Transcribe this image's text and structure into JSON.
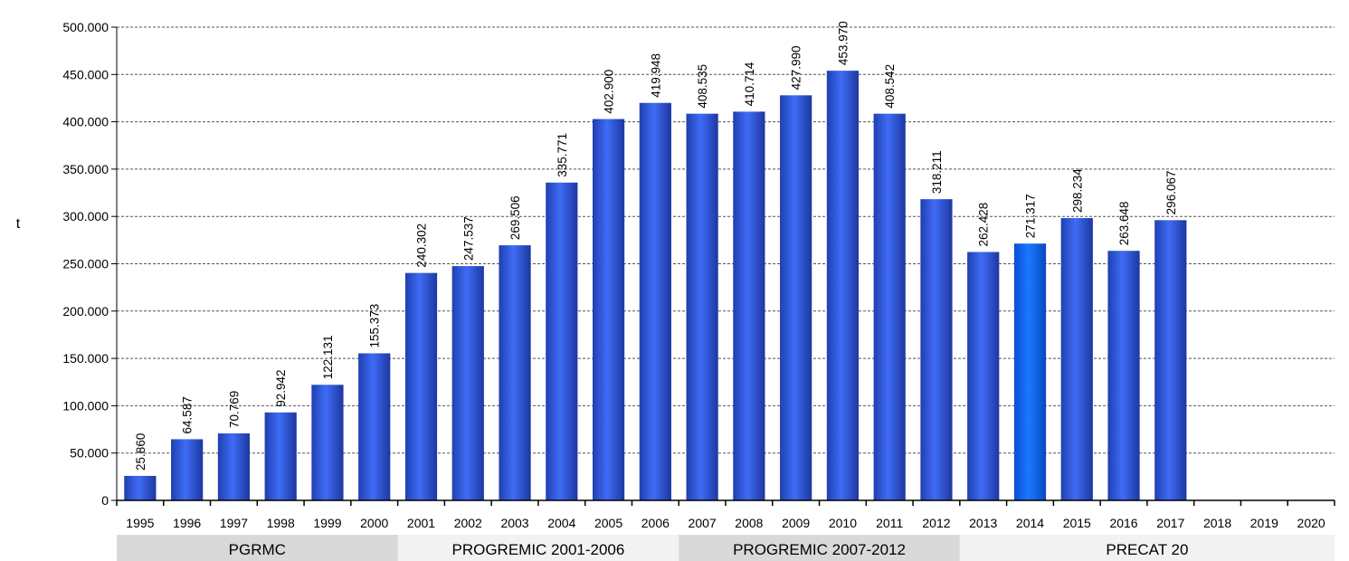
{
  "chart_data": {
    "type": "bar",
    "title": "",
    "ylabel": "t",
    "xlabel": "",
    "ylim": [
      0,
      500000
    ],
    "ytick_step": 50000,
    "yticks": [
      "0",
      "50.000",
      "100.000",
      "150.000",
      "200.000",
      "250.000",
      "300.000",
      "350.000",
      "400.000",
      "450.000",
      "500.000"
    ],
    "grid": true,
    "categories": [
      "1995",
      "1996",
      "1997",
      "1998",
      "1999",
      "2000",
      "2001",
      "2002",
      "2003",
      "2004",
      "2005",
      "2006",
      "2007",
      "2008",
      "2009",
      "2010",
      "2011",
      "2012",
      "2013",
      "2014",
      "2015",
      "2016",
      "2017",
      "2018",
      "2019",
      "2020"
    ],
    "values": [
      25860,
      64587,
      70769,
      92942,
      122131,
      155373,
      240302,
      247537,
      269506,
      335771,
      402900,
      419948,
      408535,
      410714,
      427990,
      453970,
      408542,
      318211,
      262428,
      271317,
      298234,
      263648,
      296067,
      null,
      null,
      null
    ],
    "data_labels": [
      "25.860",
      "64.587",
      "70.769",
      "92.942",
      "122.131",
      "155.373",
      "240.302",
      "247.537",
      "269.506",
      "335.771",
      "402.900",
      "419.948",
      "408.535",
      "410.714",
      "427.990",
      "453.970",
      "408.542",
      "318.211",
      "262.428",
      "271.317",
      "298.234",
      "263.648",
      "296.067",
      "",
      "",
      ""
    ],
    "bar_color": "#2f5be0",
    "highlight_color": "#0a64ff",
    "highlight_index": 19,
    "periods": [
      {
        "label": "PGRMC",
        "start": 0,
        "end": 5,
        "color": "#d9d9d9"
      },
      {
        "label": "PROGREMIC 2001-2006",
        "start": 6,
        "end": 11,
        "color": "#f2f2f2"
      },
      {
        "label": "PROGREMIC 2007-2012",
        "start": 12,
        "end": 17,
        "color": "#d9d9d9"
      },
      {
        "label": "PRECAT 20",
        "start": 18,
        "end": 25,
        "color": "#f2f2f2"
      }
    ]
  }
}
